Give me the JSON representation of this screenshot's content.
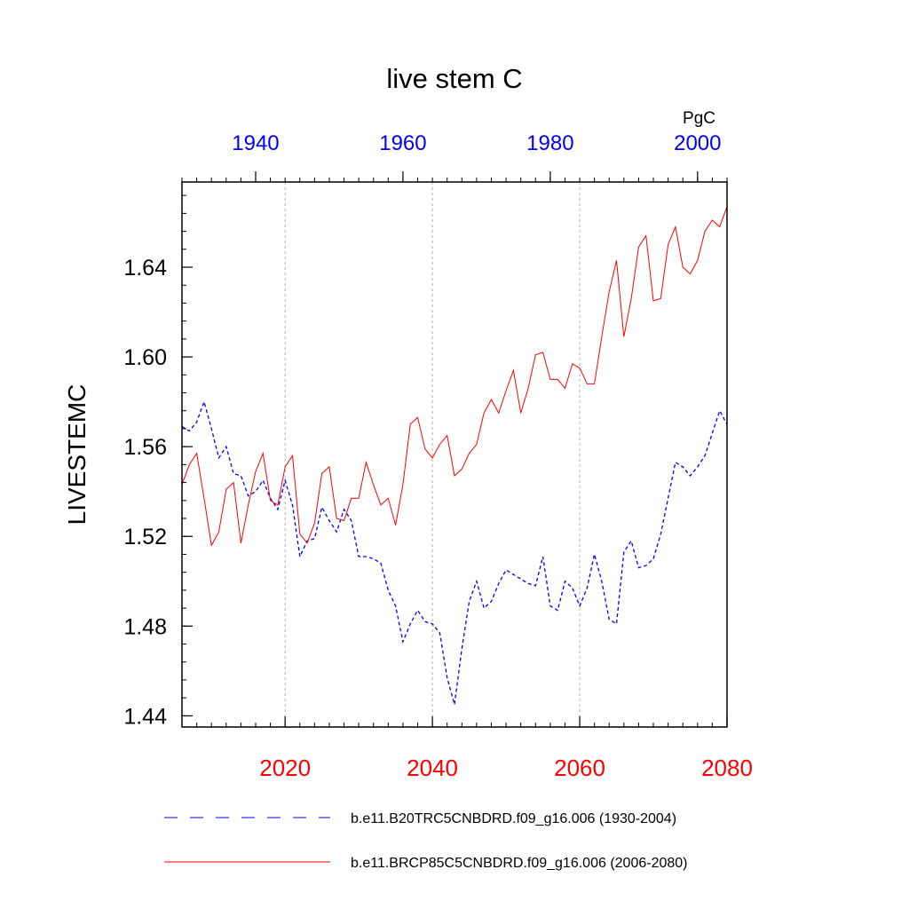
{
  "chart_data": {
    "type": "line",
    "title": "live stem C",
    "ylabel": "LIVESTEMC",
    "units": "PgC",
    "ylim": [
      1.435,
      1.678
    ],
    "yticks": [
      "1.44",
      "1.48",
      "1.52",
      "1.56",
      "1.60",
      "1.64"
    ],
    "bottom_axis": {
      "xlim": [
        2006,
        2080
      ],
      "ticks": [
        "2020",
        "2040",
        "2060",
        "2080"
      ],
      "color": "#ff0000"
    },
    "top_axis": {
      "xlim": [
        1930,
        2004
      ],
      "ticks": [
        "1940",
        "1960",
        "1980",
        "2000"
      ],
      "color": "#0000ff"
    },
    "grid": "vertical dashed at major bottom-axis ticks",
    "legend_position": "bottom",
    "series": [
      {
        "name": "b.e11.B20TRC5CNBDRD.f09_g16.006 (1930-2004)",
        "axis": "top",
        "color": "#0000ff",
        "dash": "dashed",
        "x": [
          1930,
          1931,
          1932,
          1933,
          1934,
          1935,
          1936,
          1937,
          1938,
          1939,
          1940,
          1941,
          1942,
          1943,
          1944,
          1945,
          1946,
          1947,
          1948,
          1949,
          1950,
          1951,
          1952,
          1953,
          1954,
          1955,
          1956,
          1957,
          1958,
          1959,
          1960,
          1961,
          1962,
          1963,
          1964,
          1965,
          1966,
          1967,
          1968,
          1969,
          1970,
          1971,
          1972,
          1973,
          1974,
          1975,
          1976,
          1977,
          1978,
          1979,
          1980,
          1981,
          1982,
          1983,
          1984,
          1985,
          1986,
          1987,
          1988,
          1989,
          1990,
          1991,
          1992,
          1993,
          1994,
          1995,
          1996,
          1997,
          1998,
          1999,
          2000,
          2001,
          2002,
          2003,
          2004
        ],
        "values": [
          1.569,
          1.567,
          1.571,
          1.58,
          1.568,
          1.555,
          1.56,
          1.548,
          1.547,
          1.538,
          1.54,
          1.545,
          1.537,
          1.532,
          1.545,
          1.534,
          1.511,
          1.518,
          1.519,
          1.533,
          1.527,
          1.522,
          1.532,
          1.527,
          1.511,
          1.511,
          1.51,
          1.508,
          1.496,
          1.489,
          1.473,
          1.481,
          1.487,
          1.482,
          1.481,
          1.477,
          1.457,
          1.445,
          1.47,
          1.491,
          1.5,
          1.488,
          1.491,
          1.499,
          1.505,
          1.503,
          1.501,
          1.499,
          1.498,
          1.511,
          1.489,
          1.487,
          1.5,
          1.497,
          1.489,
          1.497,
          1.512,
          1.5,
          1.483,
          1.481,
          1.513,
          1.518,
          1.506,
          1.507,
          1.51,
          1.521,
          1.537,
          1.553,
          1.551,
          1.547,
          1.551,
          1.556,
          1.566,
          1.576,
          1.57
        ]
      },
      {
        "name": "b.e11.BRCP85C5CNBDRD.f09_g16.006 (2006-2080)",
        "axis": "bottom",
        "color": "#ff0000",
        "dash": "solid",
        "x": [
          2006,
          2007,
          2008,
          2009,
          2010,
          2011,
          2012,
          2013,
          2014,
          2015,
          2016,
          2017,
          2018,
          2019,
          2020,
          2021,
          2022,
          2023,
          2024,
          2025,
          2026,
          2027,
          2028,
          2029,
          2030,
          2031,
          2032,
          2033,
          2034,
          2035,
          2036,
          2037,
          2038,
          2039,
          2040,
          2041,
          2042,
          2043,
          2044,
          2045,
          2046,
          2047,
          2048,
          2049,
          2050,
          2051,
          2052,
          2053,
          2054,
          2055,
          2056,
          2057,
          2058,
          2059,
          2060,
          2061,
          2062,
          2063,
          2064,
          2065,
          2066,
          2067,
          2068,
          2069,
          2070,
          2071,
          2072,
          2073,
          2074,
          2075,
          2076,
          2077,
          2078,
          2079,
          2080
        ],
        "values": [
          1.543,
          1.552,
          1.557,
          1.537,
          1.516,
          1.522,
          1.541,
          1.544,
          1.517,
          1.534,
          1.549,
          1.557,
          1.536,
          1.534,
          1.551,
          1.556,
          1.521,
          1.517,
          1.526,
          1.548,
          1.551,
          1.528,
          1.527,
          1.537,
          1.537,
          1.553,
          1.543,
          1.534,
          1.537,
          1.525,
          1.543,
          1.57,
          1.573,
          1.559,
          1.555,
          1.561,
          1.565,
          1.547,
          1.55,
          1.557,
          1.561,
          1.575,
          1.581,
          1.575,
          1.585,
          1.594,
          1.575,
          1.586,
          1.601,
          1.602,
          1.59,
          1.59,
          1.586,
          1.597,
          1.595,
          1.588,
          1.588,
          1.609,
          1.629,
          1.643,
          1.609,
          1.626,
          1.649,
          1.654,
          1.625,
          1.626,
          1.65,
          1.658,
          1.64,
          1.637,
          1.643,
          1.656,
          1.661,
          1.658,
          1.667
        ]
      }
    ]
  }
}
